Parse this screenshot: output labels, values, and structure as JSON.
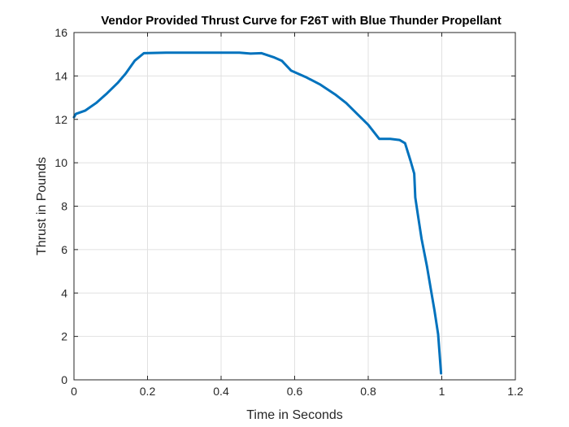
{
  "chart_data": {
    "type": "line",
    "title": "Vendor Provided Thrust Curve for F26T with Blue Thunder Propellant",
    "xlabel": "Time in Seconds",
    "ylabel": "Thrust in Pounds",
    "xlim": [
      0,
      1.2
    ],
    "ylim": [
      0,
      16
    ],
    "xticks": [
      0,
      0.2,
      0.4,
      0.6,
      0.8,
      1,
      1.2
    ],
    "xtick_labels": [
      "0",
      "0.2",
      "0.4",
      "0.6",
      "0.8",
      "1",
      "1.2"
    ],
    "yticks": [
      0,
      2,
      4,
      6,
      8,
      10,
      12,
      14,
      16
    ],
    "ytick_labels": [
      "0",
      "2",
      "4",
      "6",
      "8",
      "10",
      "12",
      "14",
      "16"
    ],
    "grid": true,
    "line_color": "#0072BD",
    "series": [
      {
        "x": [
          0,
          0.005,
          0.03,
          0.06,
          0.09,
          0.12,
          0.14,
          0.165,
          0.19,
          0.25,
          0.35,
          0.45,
          0.48,
          0.51,
          0.545,
          0.565,
          0.59,
          0.63,
          0.67,
          0.71,
          0.74,
          0.77,
          0.8,
          0.83,
          0.86,
          0.885,
          0.9,
          0.915,
          0.925,
          0.928,
          0.935,
          0.945,
          0.96,
          0.97,
          0.98,
          0.99,
          0.998
        ],
        "y": [
          12.1,
          12.25,
          12.4,
          12.75,
          13.2,
          13.7,
          14.1,
          14.7,
          15.05,
          15.07,
          15.07,
          15.07,
          15.03,
          15.05,
          14.85,
          14.7,
          14.25,
          13.95,
          13.6,
          13.15,
          12.75,
          12.25,
          11.75,
          11.1,
          11.1,
          11.05,
          10.9,
          10.1,
          9.5,
          8.4,
          7.6,
          6.5,
          5.2,
          4.2,
          3.2,
          2.1,
          0.3
        ]
      }
    ]
  }
}
